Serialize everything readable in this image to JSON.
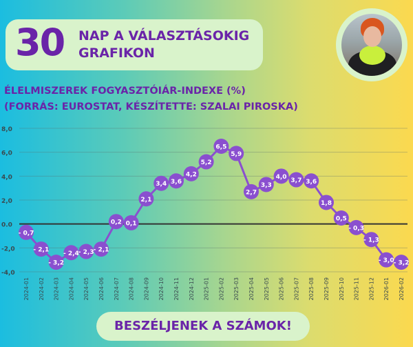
{
  "header": {
    "number": "30",
    "line1": "NAP A VÁLASZTÁSOKIG",
    "line2": "GRAFIKON"
  },
  "chart_data": {
    "type": "line",
    "title": "ÉLELMISZEREK FOGYASZTÓIÁR-INDEXE (%)",
    "subtitle": "(FORRÁS: EUROSTAT, KÉSZÍTETTE: SZALAI PIROSKA)",
    "xlabel": "",
    "ylabel": "",
    "ylim": [
      -4,
      8
    ],
    "yticks": [
      8,
      6,
      4,
      2,
      0,
      -2,
      -4
    ],
    "ytick_labels": [
      "8,0",
      "6,0",
      "4,0",
      "2,0",
      "0.0",
      "-2,0",
      "-4,0"
    ],
    "categories": [
      "2024-01",
      "2024-02",
      "2024-03",
      "2024-04",
      "2024-05",
      "2024-06",
      "2024-07",
      "2024-08",
      "2024-09",
      "2024-10",
      "2024-11",
      "2024-12",
      "2025-01",
      "2025-02",
      "2025-03",
      "2025-04",
      "2025-05",
      "2025-06",
      "2025-07",
      "2025-08",
      "2025-09",
      "2025-10",
      "2025-11",
      "2025-12",
      "2026-01",
      "2026-02"
    ],
    "values": [
      -0.7,
      -2.1,
      -3.2,
      -2.4,
      -2.3,
      -2.1,
      0.2,
      0.1,
      2.1,
      3.4,
      3.6,
      4.2,
      5.2,
      6.5,
      5.9,
      2.7,
      3.3,
      4.0,
      3.7,
      3.6,
      1.8,
      0.5,
      -0.3,
      -1.3,
      -3.0,
      -3.2
    ],
    "data_labels": [
      "- 0,7",
      "- 2,1",
      "- 3,2",
      "- 2,4",
      "- 2,3",
      "- 2,1",
      "0,2",
      "0,1",
      "2,1",
      "3,4",
      "3,6",
      "4,2",
      "5,2",
      "6,5",
      "5,9",
      "2,7",
      "3,3",
      "4,0",
      "3,7",
      "3,6",
      "1,8",
      "0,5",
      "- 0,3",
      "- 1,3",
      "- 3,0",
      "- 3,2"
    ],
    "grid": true,
    "colors": {
      "line": "#8a4fcf",
      "zero_line": "#333333",
      "label": "#ffffff"
    }
  },
  "footer": {
    "button_label": "BESZÉLJENEK A SZÁMOK!"
  }
}
